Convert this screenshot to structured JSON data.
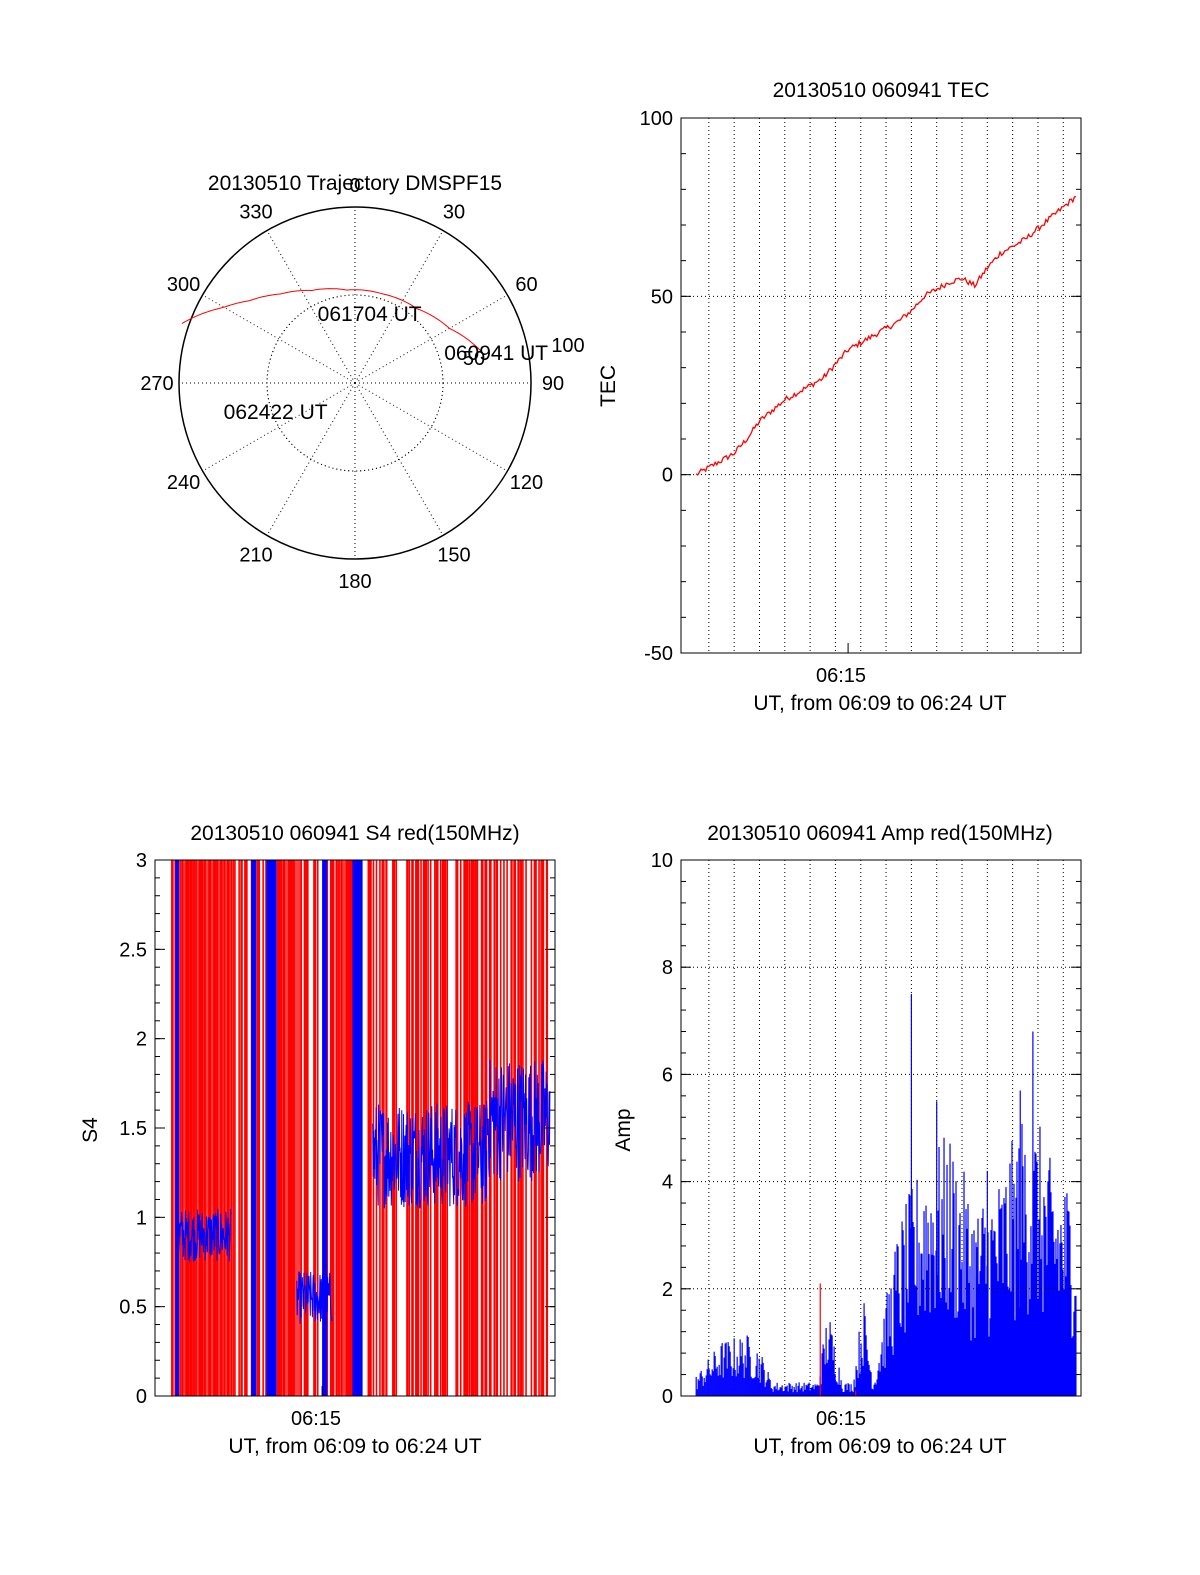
{
  "chart_data": [
    {
      "type": "polar-trajectory",
      "title": "20130510 Trajectory DMSPF15",
      "azimuth_labels": [
        "0",
        "30",
        "60",
        "90",
        "120",
        "150",
        "180",
        "210",
        "240",
        "270",
        "300",
        "330"
      ],
      "elevation_ring_labels": [
        "50",
        "100"
      ],
      "elevation_rings": [
        50,
        100
      ],
      "track": {
        "color": "#ff0000",
        "points": [
          {
            "az": 76,
            "r": 74
          },
          {
            "az": 60,
            "r": 62
          },
          {
            "az": 40,
            "r": 55
          },
          {
            "az": 17,
            "r": 53
          },
          {
            "az": -5,
            "r": 53
          },
          {
            "az": -25,
            "r": 58
          },
          {
            "az": -40,
            "r": 66
          },
          {
            "az": -52,
            "r": 76
          },
          {
            "az": -60,
            "r": 86
          },
          {
            "az": -66,
            "r": 96
          },
          {
            "az": -71,
            "r": 104
          }
        ],
        "annotations": [
          {
            "text": "060941 UT",
            "az": 78,
            "r": 82
          },
          {
            "text": "061704 UT",
            "az": 12,
            "r": 40
          },
          {
            "text": "062422 UT",
            "az": -110,
            "r": 48
          }
        ]
      }
    },
    {
      "type": "line",
      "title": "20130510 060941 TEC",
      "ylabel": "TEC",
      "xlabel": "UT, from 06:09 to 06:24 UT",
      "xtick_labels": [
        "06:15"
      ],
      "xtick_positions_min": [
        6
      ],
      "xlim_min": [
        -0.6,
        15.2
      ],
      "ylim": [
        -50,
        100
      ],
      "ytick_labels": [
        "-50",
        "0",
        "50",
        "100"
      ],
      "ytick_values": [
        -50,
        0,
        50,
        100
      ],
      "vertical_grid_min": [
        0.5,
        1.5,
        2.5,
        3.5,
        4.5,
        5.5,
        6.5,
        7.5,
        8.5,
        9.5,
        10.5,
        11.5,
        12.5,
        13.5,
        14.5
      ],
      "series": [
        {
          "name": "TEC",
          "color": "#ff0000",
          "x": [
            0,
            0.5,
            1,
            1.5,
            2,
            2.5,
            3,
            3.5,
            4,
            4.5,
            5,
            5.5,
            6,
            6.5,
            7,
            7.5,
            8,
            8.5,
            9,
            9.5,
            10,
            10.5,
            11,
            11.5,
            12,
            12.5,
            13,
            13.5,
            14,
            14.5,
            15
          ],
          "y": [
            0,
            2,
            4,
            6,
            10,
            15,
            18,
            21,
            23,
            25,
            27,
            31,
            35,
            37,
            39,
            41,
            43,
            46,
            50,
            52,
            54,
            55,
            53,
            58,
            62,
            64,
            66,
            69,
            72,
            75,
            78
          ]
        }
      ]
    },
    {
      "type": "bar",
      "title": "20130510 060941 S4 red(150MHz)",
      "ylabel": "S4",
      "xlabel": "UT, from 06:09 to 06:24 UT",
      "xtick_labels": [
        "06:15"
      ],
      "xtick_positions_min": [
        6
      ],
      "xlim_min": [
        -0.6,
        15.2
      ],
      "ylim": [
        0,
        3
      ],
      "ytick_labels": [
        "0",
        "0.5",
        "1",
        "1.5",
        "2",
        "2.5",
        "3"
      ],
      "ytick_values": [
        0,
        0.5,
        1,
        1.5,
        2,
        2.5,
        3
      ],
      "series": [
        {
          "name": "S4 spikes",
          "color": "#ff0000",
          "spike_count": 220,
          "spike_ranges_min": [
            [
              0,
              15
            ]
          ],
          "spike_value": 3
        },
        {
          "name": "S4 blue segments",
          "color": "#0000ff",
          "segments": [
            {
              "x": [
                0.3,
                2.4
              ],
              "mean": 0.9,
              "spread": 0.15
            },
            {
              "x": [
                5.0,
                6.4
              ],
              "mean": 0.55,
              "spread": 0.15
            },
            {
              "x": [
                8.0,
                12.5
              ],
              "mean": 1.35,
              "spread": 0.3
            },
            {
              "x": [
                12.5,
                15.0
              ],
              "mean": 1.55,
              "spread": 0.35
            }
          ],
          "solid_bands_min": [
            [
              0.2,
              0.35
            ],
            [
              3.2,
              3.4
            ],
            [
              3.8,
              4.2
            ],
            [
              6.0,
              6.2
            ],
            [
              7.2,
              7.6
            ]
          ]
        }
      ]
    },
    {
      "type": "bar",
      "title": "20130510 060941 Amp red(150MHz)",
      "ylabel": "Amp",
      "xlabel": "UT, from 06:09 to 06:24 UT",
      "xtick_labels": [
        "06:15"
      ],
      "xtick_positions_min": [
        6
      ],
      "xlim_min": [
        -0.6,
        15.2
      ],
      "ylim": [
        0,
        10
      ],
      "ytick_labels": [
        "0",
        "2",
        "4",
        "6",
        "8",
        "10"
      ],
      "ytick_values": [
        0,
        2,
        4,
        6,
        8,
        10
      ],
      "vertical_grid_min": [
        0.5,
        1.5,
        2.5,
        3.5,
        4.5,
        5.5,
        6.5,
        7.5,
        8.5,
        9.5,
        10.5,
        11.5,
        12.5,
        13.5,
        14.5
      ],
      "series": [
        {
          "name": "Amp",
          "color": "#0000ff",
          "envelope_x": [
            0,
            1,
            2,
            2.5,
            3,
            4,
            4.8,
            5.2,
            5.8,
            6.2,
            6.6,
            7.0,
            7.4,
            8.0,
            9.0,
            10.0,
            11.0,
            12.0,
            13.0,
            13.5,
            14.0,
            15.0
          ],
          "envelope_y": [
            0.3,
            0.8,
            0.9,
            0.7,
            0.2,
            0.2,
            0.2,
            1.3,
            0.2,
            0.2,
            1.5,
            0.2,
            1.2,
            2.5,
            3.5,
            3.8,
            2.8,
            3.2,
            4.2,
            4.0,
            3.4,
            3.0
          ],
          "peaks": [
            {
              "x": 8.5,
              "y": 7.5
            },
            {
              "x": 9.5,
              "y": 5.5
            },
            {
              "x": 13.3,
              "y": 6.8
            },
            {
              "x": 12.8,
              "y": 5.7
            },
            {
              "x": 11.5,
              "y": 4.2
            }
          ]
        },
        {
          "name": "Amp red",
          "color": "#ff0000",
          "peaks": [
            {
              "x": 4.9,
              "y": 2.1
            },
            {
              "x": 6.3,
              "y": 0.1
            }
          ]
        }
      ]
    }
  ]
}
